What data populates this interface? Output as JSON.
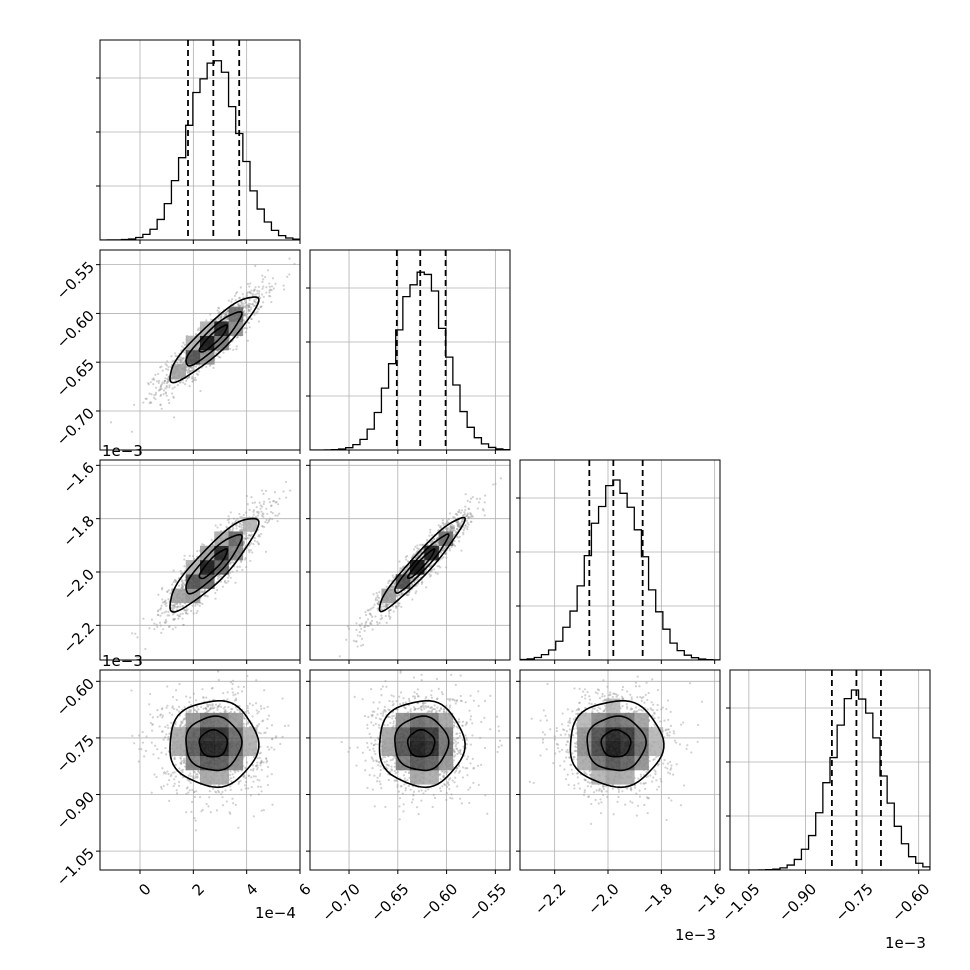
{
  "chart_data": {
    "type": "corner",
    "parameters": [
      {
        "ticks": [
          0,
          2,
          4,
          6
        ],
        "tick_labels": [
          "0",
          "2",
          "4",
          "6"
        ],
        "range": [
          -1.5,
          6.0
        ],
        "offset": "1e−4",
        "mean": 2.75,
        "std": 0.95,
        "quantiles": [
          1.8,
          2.75,
          3.72
        ],
        "hist_peak": 1.0
      },
      {
        "ticks": [
          -0.7,
          -0.65,
          -0.6,
          -0.55
        ],
        "tick_labels": [
          "−0.70",
          "−0.65",
          "−0.60",
          "−0.55"
        ],
        "range": [
          -0.74,
          -0.535
        ],
        "offset": "1e−3",
        "mean": -0.626,
        "std": 0.025,
        "quantiles": [
          -0.651,
          -0.627,
          -0.601
        ],
        "hist_peak": 1.0
      },
      {
        "ticks": [
          -2.2,
          -2.0,
          -1.8,
          -1.6
        ],
        "tick_labels": [
          "−2.2",
          "−2.0",
          "−1.8",
          "−1.6"
        ],
        "range": [
          -2.33,
          -1.58
        ],
        "offset": "1e−3",
        "mean": -1.97,
        "std": 0.1,
        "quantiles": [
          -2.07,
          -1.98,
          -1.87
        ],
        "hist_peak": 1.0
      },
      {
        "ticks": [
          -1.05,
          -0.9,
          -0.75,
          -0.6
        ],
        "tick_labels": [
          "−1.05",
          "−0.90",
          "−0.75",
          "−0.60"
        ],
        "range": [
          -1.1,
          -0.57
        ],
        "offset": "1e−3",
        "mean": -0.765,
        "std": 0.065,
        "quantiles": [
          -0.83,
          -0.765,
          -0.7
        ],
        "hist_peak": 1.0
      }
    ],
    "correlations": {
      "1,0": 0.9,
      "2,0": 0.88,
      "2,1": 0.95,
      "3,0": 0.0,
      "3,1": 0.0,
      "3,2": 0.0
    },
    "grid": true,
    "quantile_levels": [
      0.16,
      0.5,
      0.84
    ]
  }
}
